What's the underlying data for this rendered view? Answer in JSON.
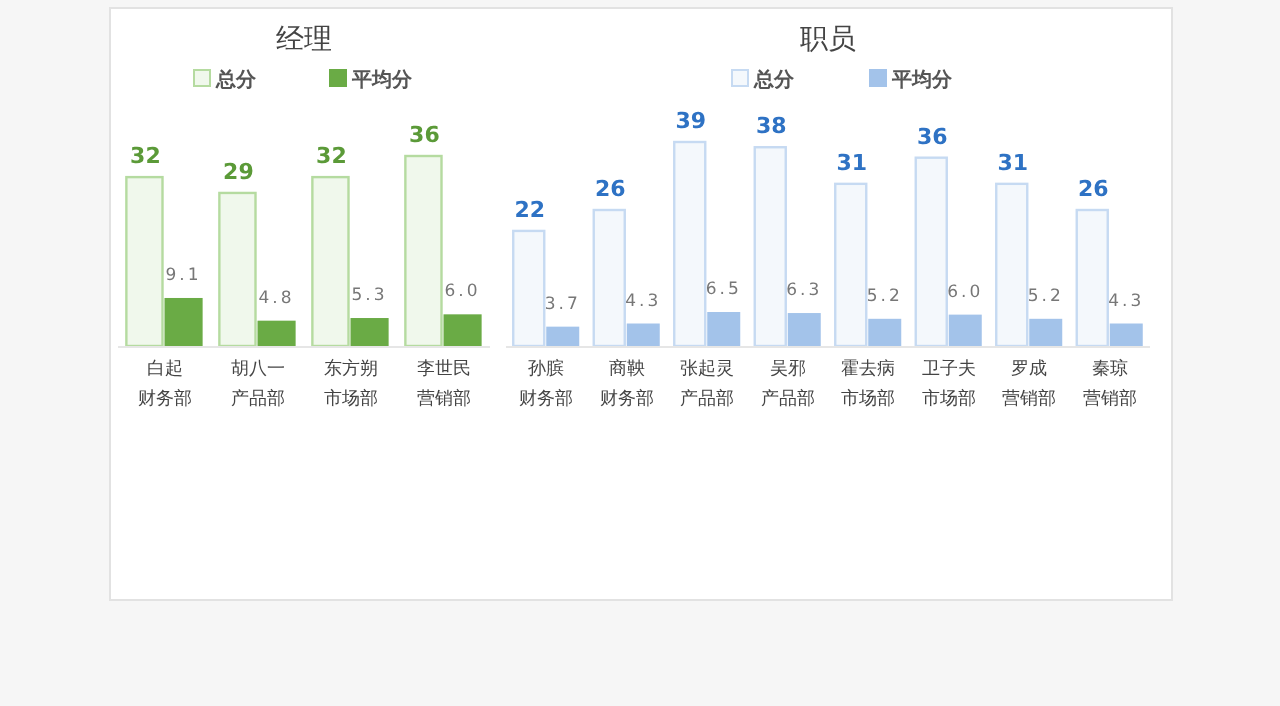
{
  "chart_data": [
    {
      "type": "bar",
      "title": "经理",
      "legend": "top",
      "categories": [
        "白起",
        "胡八一",
        "东方朔",
        "李世民"
      ],
      "annotations": [
        "财务部",
        "产品部",
        "市场部",
        "营销部"
      ],
      "series": [
        {
          "name": "总分",
          "color": "#b5dba0",
          "values": [
            32,
            29,
            32,
            36
          ],
          "value_labels": [
            "32",
            "29",
            "32",
            "36"
          ]
        },
        {
          "name": "平均分",
          "color": "#6aab45",
          "values": [
            9.1,
            4.8,
            5.3,
            6.0
          ],
          "value_labels": [
            "9.1",
            "4.8",
            "5.3",
            "6.0"
          ]
        }
      ]
    },
    {
      "type": "bar",
      "title": "职员",
      "legend": "top",
      "categories": [
        "孙膑",
        "商鞅",
        "张起灵",
        "吴邪",
        "霍去病",
        "卫子夫",
        "罗成",
        "秦琼"
      ],
      "annotations": [
        "财务部",
        "财务部",
        "产品部",
        "产品部",
        "市场部",
        "市场部",
        "营销部",
        "营销部"
      ],
      "series": [
        {
          "name": "总分",
          "color": "#c6daf2",
          "values": [
            22,
            26,
            39,
            38,
            31,
            36,
            31,
            26
          ],
          "value_labels": [
            "22",
            "26",
            "39",
            "38",
            "31",
            "36",
            "31",
            "26"
          ]
        },
        {
          "name": "平均分",
          "color": "#a3c3ea",
          "values": [
            3.7,
            4.3,
            6.5,
            6.3,
            5.2,
            6.0,
            5.2,
            4.3
          ],
          "value_labels": [
            "3.7",
            "4.3",
            "6.5",
            "6.3",
            "5.2",
            "6.0",
            "5.2",
            "4.3"
          ]
        }
      ]
    }
  ]
}
